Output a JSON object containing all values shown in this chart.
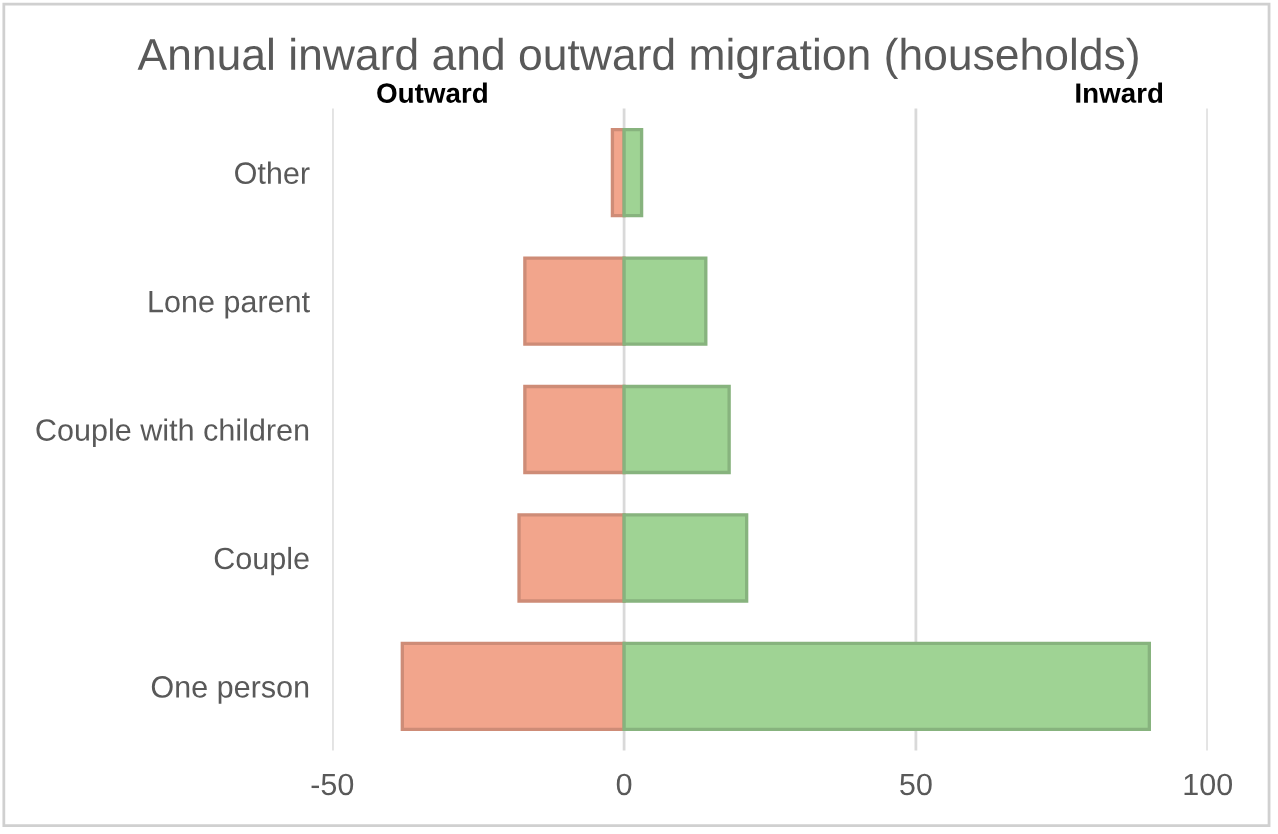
{
  "chart_data": {
    "type": "bar",
    "orientation": "horizontal",
    "stacked": true,
    "title": "Annual inward and outward migration (households)",
    "categories": [
      "Other",
      "Lone parent",
      "Couple with children",
      "Couple",
      "One person"
    ],
    "series": [
      {
        "color": "#f2a58c",
        "values": [
          -2,
          -17,
          -17,
          -18,
          -38
        ]
      },
      {
        "color": "#9fd394",
        "values": [
          3,
          14,
          18,
          21,
          90
        ]
      }
    ],
    "annotations": [
      "Outward",
      "Inward"
    ],
    "xlim": [
      -50,
      100
    ],
    "xticks": [
      -50,
      0,
      50,
      100
    ],
    "grid": "x",
    "legend": false
  }
}
